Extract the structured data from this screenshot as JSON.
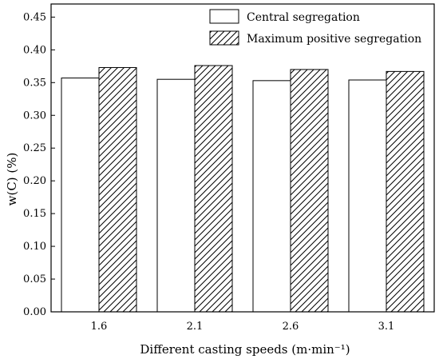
{
  "chart_data": {
    "type": "bar",
    "categories": [
      "1.6",
      "2.1",
      "2.6",
      "3.1"
    ],
    "series": [
      {
        "name": "Central segregation",
        "values": [
          0.357,
          0.355,
          0.353,
          0.354
        ],
        "fill": "#ffffff",
        "pattern": "none"
      },
      {
        "name": "Maximum positive segregation",
        "values": [
          0.373,
          0.376,
          0.37,
          0.367
        ],
        "fill": "#ffffff",
        "pattern": "diagonal-hatch"
      }
    ],
    "xlabel": "Different casting speeds (m·min⁻¹)",
    "ylabel": "w(C)  (%)",
    "ylim": [
      0,
      0.47
    ],
    "yticks": [
      "0.00",
      "0.05",
      "0.10",
      "0.15",
      "0.20",
      "0.25",
      "0.30",
      "0.35",
      "0.40",
      "0.45"
    ],
    "grid": false,
    "legend_position": "top-right"
  }
}
